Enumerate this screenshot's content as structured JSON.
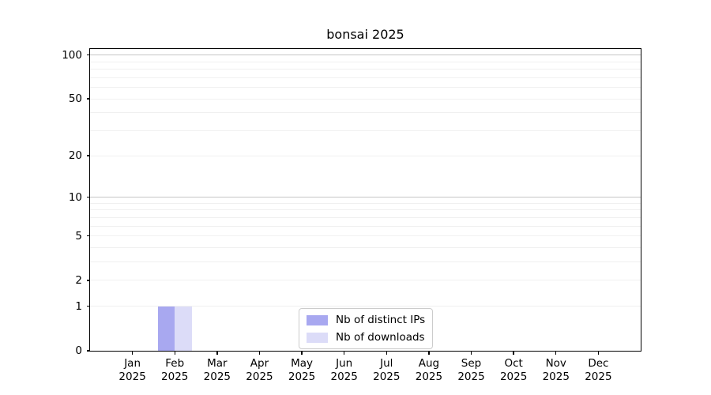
{
  "chart_data": {
    "type": "bar",
    "title": "bonsai 2025",
    "categories": [
      "Jan",
      "Feb",
      "Mar",
      "Apr",
      "May",
      "Jun",
      "Jul",
      "Aug",
      "Sep",
      "Oct",
      "Nov",
      "Dec"
    ],
    "year": "2025",
    "series": [
      {
        "name": "Nb of distinct IPs",
        "color": "#a8a8f0",
        "values": [
          0,
          1,
          0,
          0,
          0,
          0,
          0,
          0,
          0,
          0,
          0,
          0
        ]
      },
      {
        "name": "Nb of downloads",
        "color": "#dcdcf8",
        "values": [
          0,
          1,
          0,
          0,
          0,
          0,
          0,
          0,
          0,
          0,
          0,
          0
        ]
      }
    ],
    "xlabel": "",
    "ylabel": "",
    "yscale": "log1p",
    "ylim": [
      0,
      110
    ],
    "yticks": [
      0,
      1,
      2,
      5,
      10,
      20,
      50,
      100
    ],
    "grid": {
      "values": [
        1,
        2,
        3,
        4,
        5,
        6,
        7,
        8,
        9,
        10,
        20,
        30,
        40,
        50,
        60,
        70,
        80,
        90,
        100
      ],
      "minor_color": "#f0f0f0",
      "major_values": [
        10,
        100
      ],
      "major_color": "#c6c6c6"
    },
    "legend_position": "lower center",
    "bar_group_width_fraction": 0.8
  }
}
